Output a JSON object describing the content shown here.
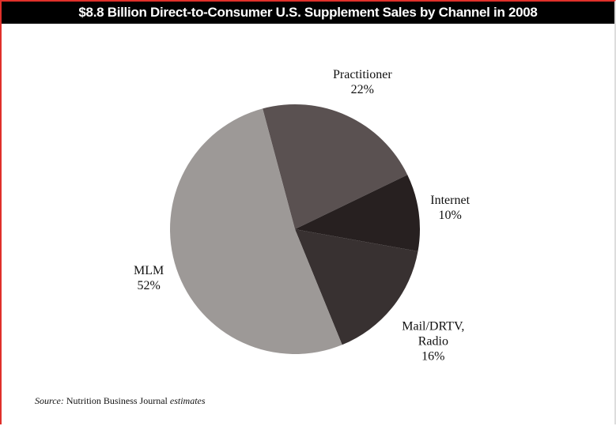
{
  "chart_data": {
    "type": "pie",
    "title": "$8.8 Billion Direct-to-Consumer U.S. Supplement Sales by Channel in 2008",
    "categories": [
      "Practitioner",
      "Internet",
      "Mail/DRTV, Radio",
      "MLM"
    ],
    "values": [
      22,
      10,
      16,
      52
    ],
    "value_labels": [
      "22%",
      "10%",
      "16%",
      "52%"
    ],
    "colors": [
      "#5a5151",
      "#272020",
      "#383131",
      "#9d9997"
    ],
    "source": {
      "label": "Source:",
      "text": "Nutrition Business Journal",
      "note": "estimates"
    }
  }
}
